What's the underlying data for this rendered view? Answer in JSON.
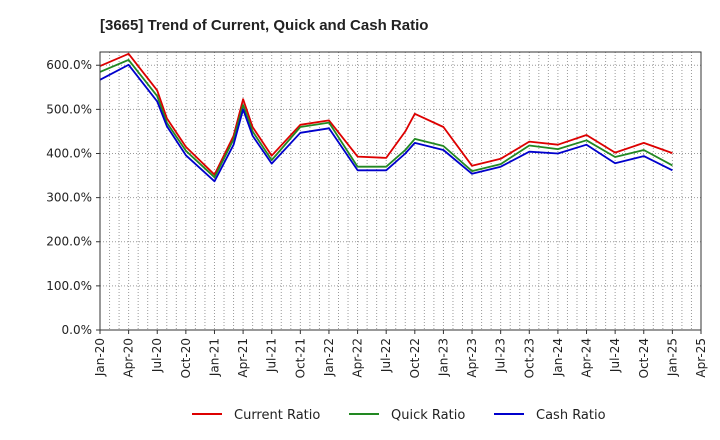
{
  "chart_data": {
    "type": "line",
    "title": "[3665]  Trend of Current, Quick and Cash Ratio",
    "xlabel": "",
    "ylabel": "",
    "ylim": [
      0,
      630
    ],
    "y_ticks": [
      {
        "value": 0,
        "label": "0.0%"
      },
      {
        "value": 100,
        "label": "100.0%"
      },
      {
        "value": 200,
        "label": "200.0%"
      },
      {
        "value": 300,
        "label": "300.0%"
      },
      {
        "value": 400,
        "label": "400.0%"
      },
      {
        "value": 500,
        "label": "500.0%"
      },
      {
        "value": 600,
        "label": "600.0%"
      }
    ],
    "x_tick_labels": [
      "Jan-20",
      "Apr-20",
      "Jul-20",
      "Oct-20",
      "Jan-21",
      "Apr-21",
      "Jul-21",
      "Oct-21",
      "Jan-22",
      "Apr-22",
      "Jul-22",
      "Oct-22",
      "Jan-23",
      "Apr-23",
      "Jul-23",
      "Oct-23",
      "Jan-24",
      "Apr-24",
      "Jul-24",
      "Oct-24",
      "Jan-25",
      "Apr-25"
    ],
    "x": [
      "2020-01",
      "2020-02",
      "2020-03",
      "2020-04",
      "2020-05",
      "2020-06",
      "2020-07",
      "2020-08",
      "2020-09",
      "2020-10",
      "2020-11",
      "2020-12",
      "2021-01",
      "2021-02",
      "2021-03",
      "2021-04",
      "2021-05",
      "2021-06",
      "2021-07",
      "2021-08",
      "2021-09",
      "2021-10",
      "2021-11",
      "2021-12",
      "2022-01",
      "2022-02",
      "2022-03",
      "2022-04",
      "2022-05",
      "2022-06",
      "2022-07",
      "2022-08",
      "2022-09",
      "2022-10",
      "2022-11",
      "2022-12",
      "2023-01",
      "2023-02",
      "2023-03",
      "2023-04",
      "2023-05",
      "2023-06",
      "2023-07",
      "2023-08",
      "2023-09",
      "2023-10",
      "2023-11",
      "2023-12",
      "2024-01",
      "2024-02",
      "2024-03",
      "2024-04",
      "2024-05",
      "2024-06",
      "2024-07",
      "2024-08",
      "2024-09",
      "2024-10",
      "2024-11",
      "2024-12",
      "2025-01"
    ],
    "series": [
      {
        "name": "Current Ratio",
        "color": "#dd0000",
        "points": [
          [
            0,
            598
          ],
          [
            3,
            626
          ],
          [
            6,
            543
          ],
          [
            7,
            480
          ],
          [
            9,
            415
          ],
          [
            12,
            352
          ],
          [
            14,
            440
          ],
          [
            15,
            523
          ],
          [
            16,
            460
          ],
          [
            18,
            395
          ],
          [
            21,
            465
          ],
          [
            24,
            475
          ],
          [
            27,
            393
          ],
          [
            30,
            390
          ],
          [
            32,
            450
          ],
          [
            33,
            490
          ],
          [
            36,
            460
          ],
          [
            39,
            372
          ],
          [
            42,
            388
          ],
          [
            45,
            427
          ],
          [
            48,
            420
          ],
          [
            51,
            442
          ],
          [
            54,
            402
          ],
          [
            57,
            424
          ],
          [
            60,
            401
          ]
        ]
      },
      {
        "name": "Quick Ratio",
        "color": "#228822",
        "points": [
          [
            0,
            585
          ],
          [
            3,
            612
          ],
          [
            6,
            530
          ],
          [
            7,
            470
          ],
          [
            9,
            406
          ],
          [
            12,
            346
          ],
          [
            14,
            432
          ],
          [
            15,
            510
          ],
          [
            16,
            450
          ],
          [
            18,
            385
          ],
          [
            21,
            460
          ],
          [
            24,
            470
          ],
          [
            27,
            370
          ],
          [
            30,
            370
          ],
          [
            32,
            408
          ],
          [
            33,
            433
          ],
          [
            36,
            417
          ],
          [
            39,
            360
          ],
          [
            42,
            376
          ],
          [
            45,
            418
          ],
          [
            48,
            410
          ],
          [
            51,
            430
          ],
          [
            54,
            392
          ],
          [
            57,
            408
          ],
          [
            60,
            373
          ]
        ]
      },
      {
        "name": "Cash Ratio",
        "color": "#0000cc",
        "points": [
          [
            0,
            567
          ],
          [
            3,
            601
          ],
          [
            6,
            518
          ],
          [
            7,
            462
          ],
          [
            9,
            396
          ],
          [
            12,
            337
          ],
          [
            14,
            420
          ],
          [
            15,
            500
          ],
          [
            16,
            440
          ],
          [
            18,
            377
          ],
          [
            21,
            447
          ],
          [
            24,
            457
          ],
          [
            27,
            362
          ],
          [
            30,
            362
          ],
          [
            32,
            400
          ],
          [
            33,
            424
          ],
          [
            36,
            408
          ],
          [
            39,
            354
          ],
          [
            42,
            370
          ],
          [
            45,
            404
          ],
          [
            48,
            400
          ],
          [
            51,
            420
          ],
          [
            54,
            378
          ],
          [
            57,
            394
          ],
          [
            60,
            362
          ]
        ]
      }
    ],
    "grid": true,
    "legend": "bottom"
  }
}
